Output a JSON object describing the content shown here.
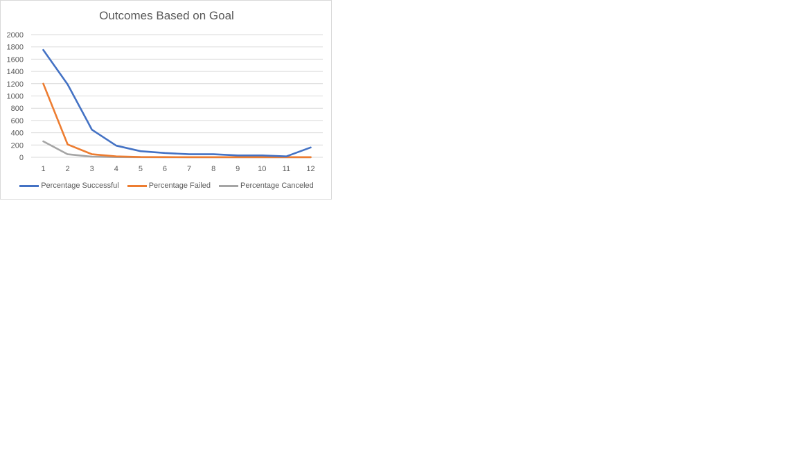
{
  "chart_data": {
    "type": "line",
    "title": "Outcomes Based on Goal",
    "xlabel": "",
    "ylabel": "",
    "categories": [
      "1",
      "2",
      "3",
      "4",
      "5",
      "6",
      "7",
      "8",
      "9",
      "10",
      "11",
      "12"
    ],
    "ylim": [
      0,
      2000
    ],
    "yticks": [
      "0",
      "200",
      "400",
      "600",
      "800",
      "1000",
      "1200",
      "1400",
      "1600",
      "1800",
      "2000"
    ],
    "grid": true,
    "legend_position": "bottom",
    "series": [
      {
        "name": "Percentage Successful",
        "color": "#4472c4",
        "values": [
          1750,
          1190,
          450,
          190,
          100,
          70,
          50,
          50,
          30,
          30,
          15,
          160
        ]
      },
      {
        "name": "Percentage Failed",
        "color": "#ed7d31",
        "values": [
          1200,
          210,
          50,
          15,
          5,
          3,
          2,
          2,
          2,
          2,
          2,
          2
        ]
      },
      {
        "name": "Percentage Canceled",
        "color": "#a5a5a5",
        "values": [
          260,
          50,
          10,
          3,
          2,
          1,
          1,
          1,
          1,
          1,
          1,
          1
        ]
      }
    ]
  }
}
